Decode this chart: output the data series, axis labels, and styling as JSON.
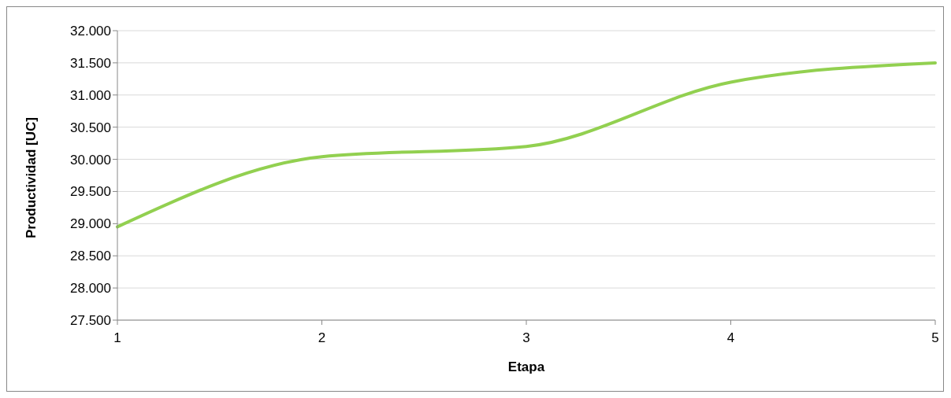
{
  "chart_data": {
    "type": "line",
    "xlabel": "Etapa",
    "ylabel": "Productividad [UC]",
    "categories": [
      "1",
      "2",
      "3",
      "4",
      "5"
    ],
    "series": [
      {
        "color": "#92d050",
        "values": [
          28.95,
          30.04,
          30.2,
          31.2,
          31.5
        ]
      }
    ],
    "ylim": [
      27.5,
      32
    ],
    "yticks": [
      {
        "value": 27.5,
        "label": "27.500"
      },
      {
        "value": 28,
        "label": "28.000"
      },
      {
        "value": 28.5,
        "label": "28.500"
      },
      {
        "value": 29,
        "label": "29.000"
      },
      {
        "value": 29.5,
        "label": "29.500"
      },
      {
        "value": 30,
        "label": "30.000"
      },
      {
        "value": 30.5,
        "label": "30.500"
      },
      {
        "value": 31,
        "label": "31.000"
      },
      {
        "value": 31.5,
        "label": "31.500"
      },
      {
        "value": 32,
        "label": "32.000"
      }
    ],
    "grid": "y",
    "marker": "none",
    "line_style": "solid",
    "legend": false
  }
}
